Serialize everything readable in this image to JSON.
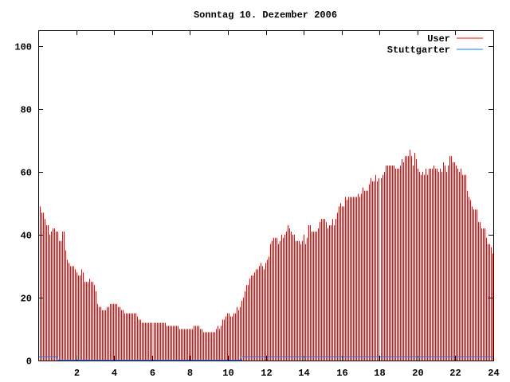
{
  "chart_data": {
    "type": "bar",
    "title": "Sonntag 10. Dezember 2006",
    "xlabel": "",
    "ylabel": "",
    "xlim": [
      0,
      24
    ],
    "ylim": [
      0,
      105
    ],
    "x_ticks": [
      2,
      4,
      6,
      8,
      10,
      12,
      14,
      16,
      18,
      20,
      22,
      24
    ],
    "y_ticks": [
      0,
      20,
      40,
      60,
      80,
      100
    ],
    "grid": false,
    "legend_position": "top-right",
    "series": [
      {
        "name": "User",
        "style": "impulses",
        "color": "#ff0000",
        "interval_minutes": 5,
        "values": [
          49,
          47,
          47,
          45,
          43,
          43,
          40,
          41,
          42,
          42,
          41,
          41,
          38,
          38,
          41,
          41,
          35,
          32,
          31,
          30,
          30,
          30,
          29,
          28,
          27,
          27,
          29,
          28,
          25,
          25,
          25,
          26,
          25,
          25,
          24,
          22,
          18,
          17,
          17,
          16,
          16,
          16,
          17,
          17,
          18,
          18,
          18,
          18,
          18,
          17,
          17,
          16,
          16,
          15,
          15,
          15,
          15,
          15,
          15,
          15,
          15,
          14,
          13,
          13,
          12,
          12,
          12,
          12,
          12,
          12,
          12,
          12,
          12,
          12,
          12,
          12,
          12,
          12,
          12,
          11,
          11,
          11,
          11,
          11,
          11,
          11,
          11,
          10,
          10,
          10,
          10,
          10,
          10,
          10,
          10,
          10,
          11,
          11,
          11,
          11,
          10,
          10,
          9,
          9,
          9,
          9,
          9,
          9,
          9,
          9,
          10,
          11,
          10,
          11,
          13,
          13,
          14,
          15,
          15,
          14,
          14,
          15,
          15,
          17,
          16,
          17,
          19,
          20,
          22,
          24,
          24,
          26,
          27,
          27,
          28,
          29,
          29,
          30,
          31,
          30,
          29,
          31,
          32,
          33,
          37,
          38,
          39,
          39,
          39,
          37,
          38,
          40,
          39,
          40,
          41,
          43,
          42,
          41,
          40,
          40,
          38,
          38,
          38,
          37,
          38,
          40,
          37,
          39,
          43,
          43,
          41,
          41,
          41,
          41,
          42,
          44,
          45,
          45,
          45,
          44,
          42,
          43,
          43,
          45,
          43,
          45,
          47,
          49,
          50,
          49,
          49,
          52,
          51,
          52,
          52,
          52,
          52,
          52,
          52,
          53,
          52,
          53,
          55,
          54,
          54,
          54,
          56,
          58,
          57,
          57,
          59,
          57,
          58,
          58,
          59,
          60,
          62,
          62,
          62,
          62,
          62,
          62,
          61,
          61,
          61,
          62,
          64,
          63,
          65,
          65,
          65,
          67,
          65,
          62,
          66,
          64,
          61,
          60,
          59,
          60,
          59,
          61,
          59,
          61,
          61,
          61,
          62,
          61,
          61,
          60,
          61,
          60,
          63,
          62,
          60,
          62,
          65,
          65,
          63,
          63,
          62,
          61,
          60,
          61,
          59,
          59,
          59,
          54,
          52,
          51,
          49,
          48,
          48,
          48,
          44,
          44,
          42,
          42,
          42,
          39,
          37,
          37,
          36,
          34
        ]
      },
      {
        "name": "Stuttgarter",
        "style": "lines",
        "color": "#0080ff",
        "points": [
          [
            0,
            1
          ],
          [
            1.0,
            1
          ],
          [
            1.05,
            0
          ],
          [
            10.7,
            0
          ],
          [
            10.75,
            1
          ],
          [
            24,
            1
          ]
        ]
      }
    ]
  }
}
